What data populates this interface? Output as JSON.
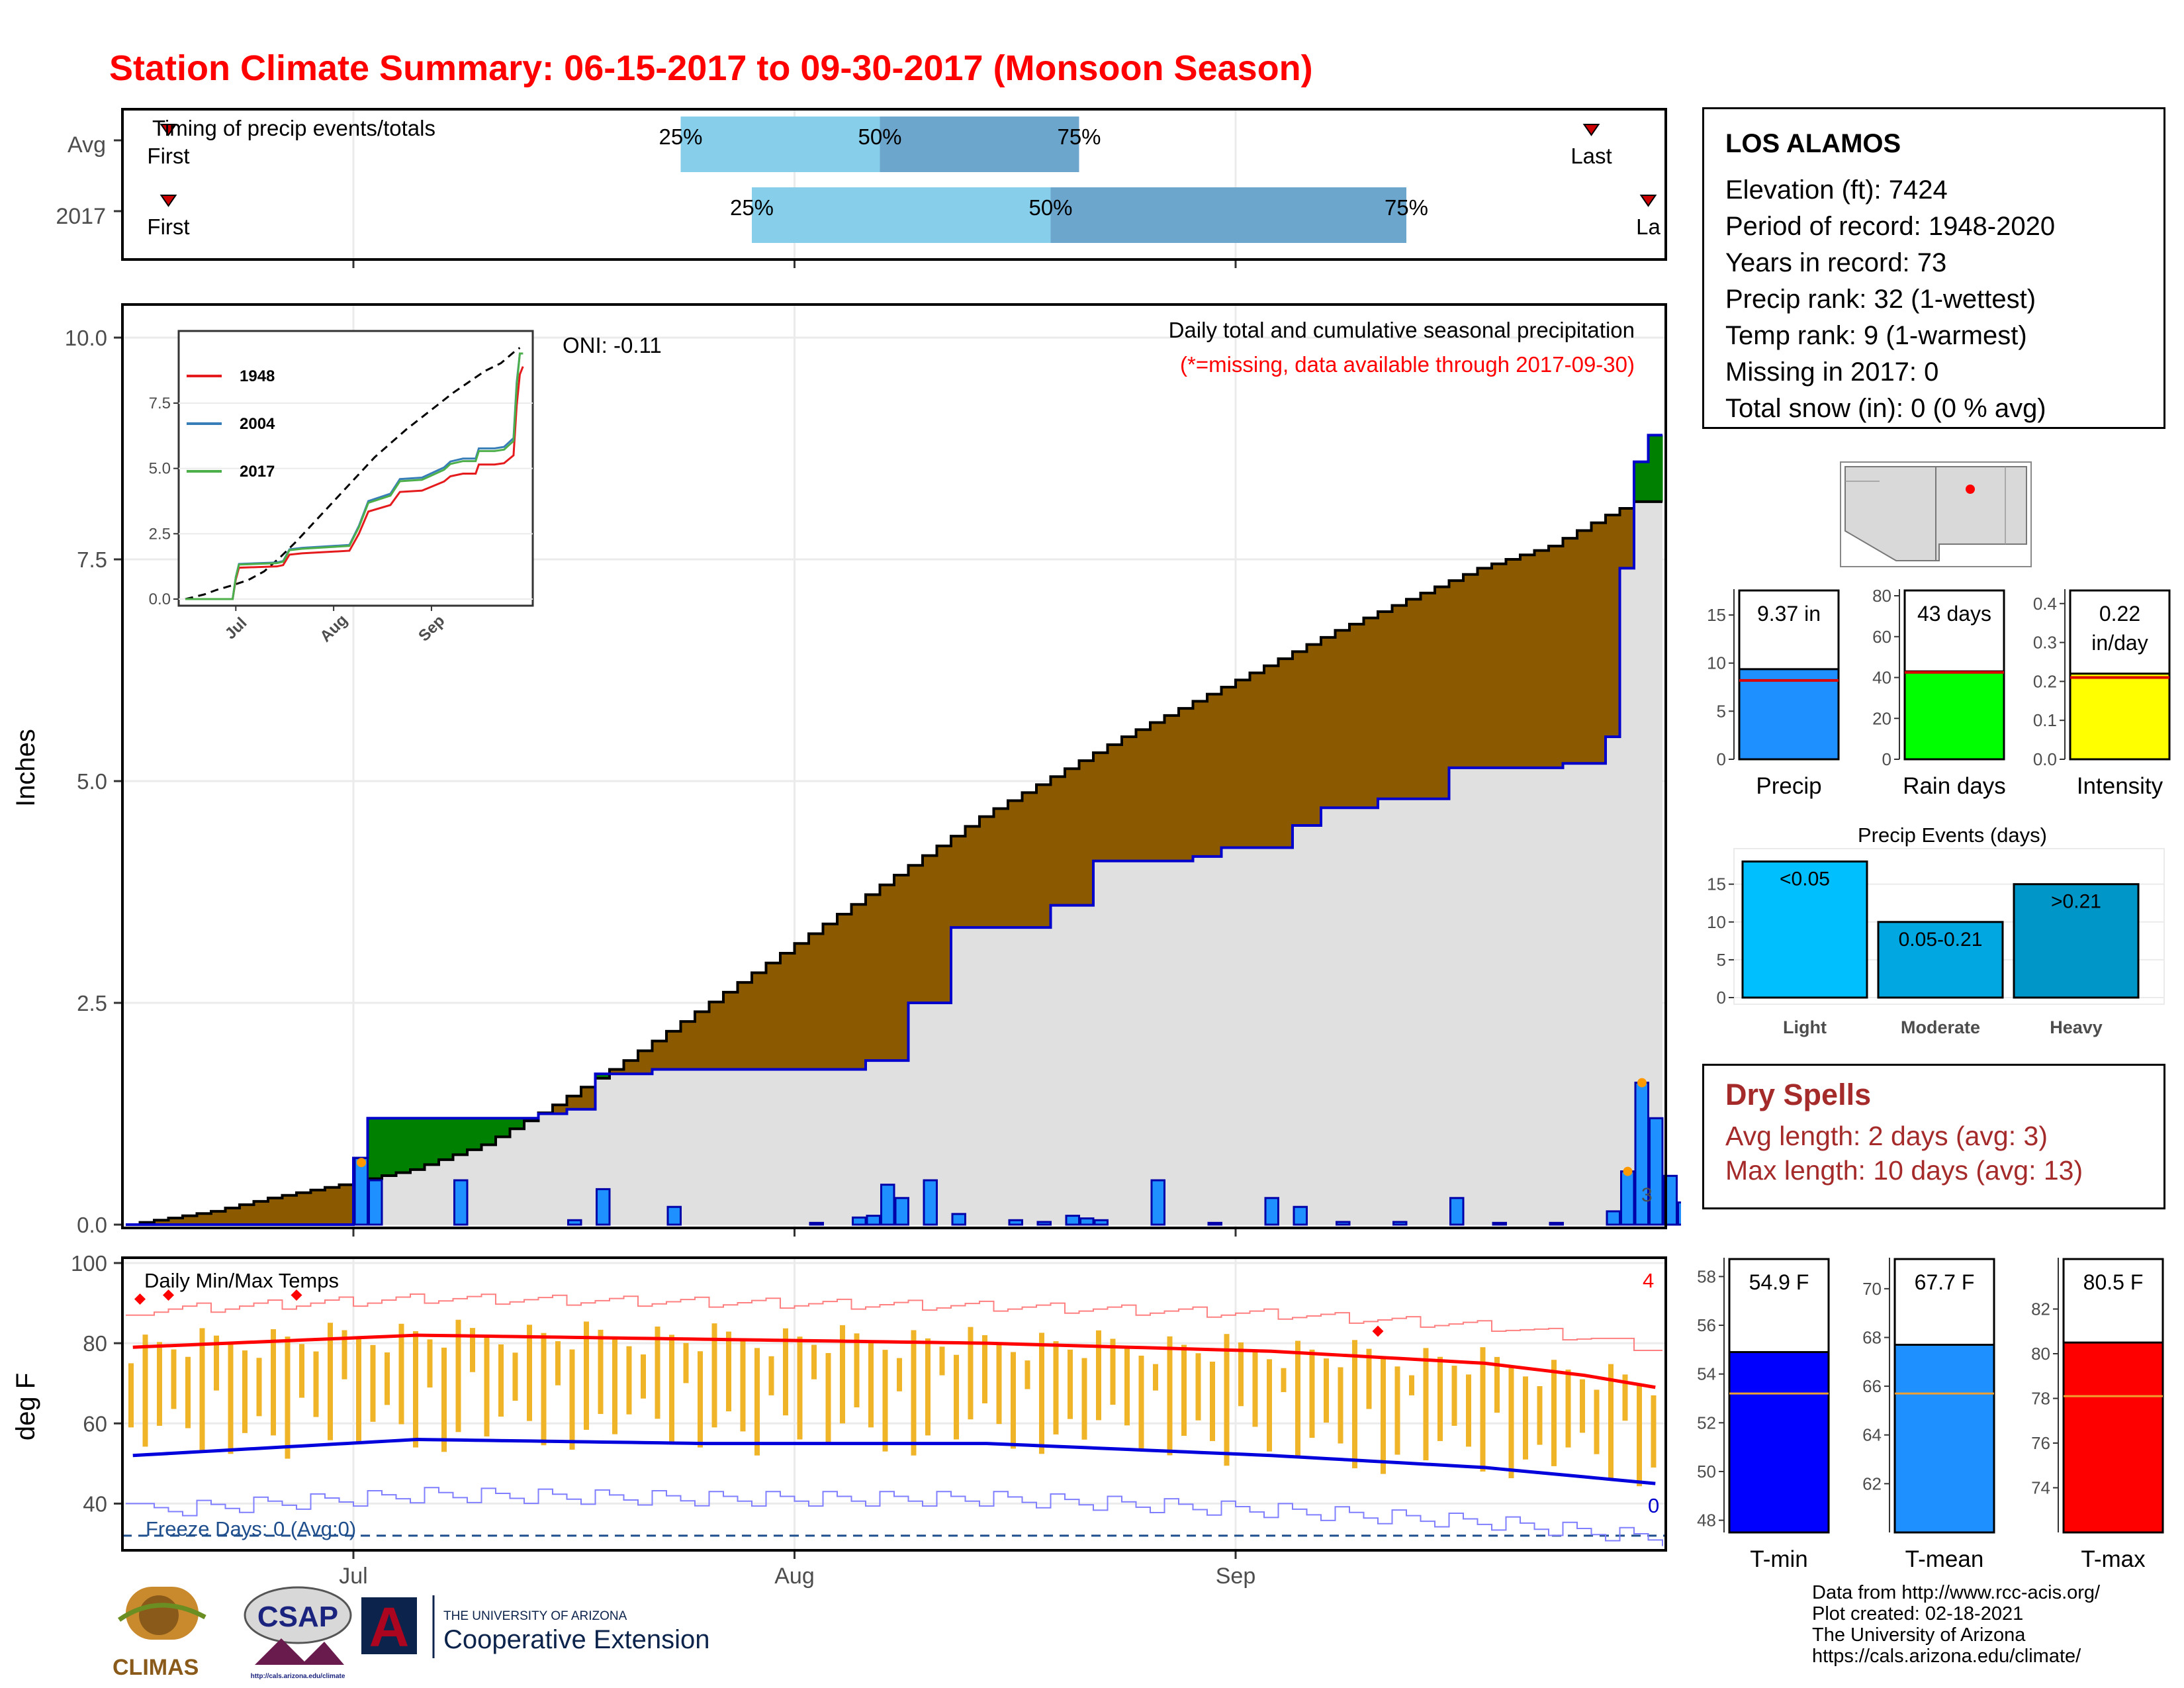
{
  "title": "Station Climate Summary: 06-15-2017 to 09-30-2017 (Monsoon Season)",
  "station": {
    "name": "LOS ALAMOS",
    "lines": [
      "Elevation (ft): 7424",
      "Period of record: 1948-2020",
      "Years in record: 73",
      "Precip rank: 32 (1-wettest)",
      "Temp rank: 9 (1-warmest)",
      "Missing in 2017: 0",
      "Total snow (in): 0 (0 % avg)"
    ]
  },
  "dry_spells": {
    "title": "Dry Spells",
    "avg_length": "Avg length: 2 days (avg: 3)",
    "max_length": "Max length: 10 days (avg: 13)"
  },
  "credits": [
    "Data from http://www.rcc-acis.org/",
    "Plot created: 02-18-2021",
    "The University of Arizona",
    "https://cals.arizona.edu/climate/"
  ],
  "logos": {
    "climas": "CLIMAS",
    "csap": "CSAP",
    "csap_url": "http://cals.arizona.edu/climate",
    "ua_line1": "THE UNIVERSITY OF ARIZONA",
    "ua_line2": "Cooperative Extension"
  },
  "colors": {
    "title": "#ff0000",
    "daily_bar": "#1e90ff",
    "deficit": "#8b5a00",
    "surplus": "#008000",
    "light": "#00bfff",
    "moderate": "#00a7e0",
    "heavy": "#0096c8",
    "tmin": "#0000ff",
    "tmean": "#1e90ff",
    "tmax": "#ff0000",
    "temp_bar": "#f0b429",
    "dry": "#a52a2a"
  },
  "chart_data": [
    {
      "type": "bar",
      "subtitle": "Timing of precip events/totals",
      "rows": [
        {
          "label": "Avg",
          "first": "First",
          "last": "Last",
          "q25": "25%",
          "q50": "50%",
          "q75": "75%",
          "q25_date": "2017-07-24",
          "q50_date": "2017-08-07",
          "q75_date": "2017-08-21",
          "first_date": "2017-06-18",
          "last_date": "2017-09-26"
        },
        {
          "label": "2017",
          "first": "First",
          "last": "La",
          "q25": "25%",
          "q50": "50%",
          "q75": "75%",
          "q25_date": "2017-07-29",
          "q50_date": "2017-08-19",
          "q75_date": "2017-09-13",
          "first_date": "2017-06-18",
          "last_date": "2017-09-30"
        }
      ],
      "x_ticks": [
        "Jul",
        "Aug",
        "Sep"
      ]
    },
    {
      "type": "area",
      "title": "Daily total and cumulative seasonal precipitation",
      "note": "(*=missing, data available through 2017-09-30)",
      "oni": "ONI: -0.11",
      "ylabel": "Inches",
      "ylim": [
        0,
        10.5
      ],
      "y_ticks": [
        "0.0",
        "2.5",
        "5.0",
        "7.5",
        "10.0"
      ],
      "x_ticks": [
        "Jul",
        "Aug",
        "Sep"
      ],
      "tail_label": "3",
      "avg_cumulative": [
        [
          0,
          0
        ],
        [
          6,
          0.15
        ],
        [
          10,
          0.3
        ],
        [
          15,
          0.45
        ],
        [
          20,
          0.62
        ],
        [
          25,
          0.9
        ],
        [
          30,
          1.35
        ],
        [
          35,
          1.85
        ],
        [
          40,
          2.4
        ],
        [
          45,
          2.95
        ],
        [
          50,
          3.5
        ],
        [
          55,
          4.05
        ],
        [
          60,
          4.6
        ],
        [
          65,
          5.05
        ],
        [
          70,
          5.5
        ],
        [
          75,
          5.9
        ],
        [
          80,
          6.3
        ],
        [
          85,
          6.7
        ],
        [
          90,
          7.05
        ],
        [
          95,
          7.4
        ],
        [
          100,
          7.65
        ],
        [
          104,
          8.0
        ],
        [
          106,
          8.15
        ]
      ],
      "obs_cumulative": [
        [
          0,
          0
        ],
        [
          15,
          0
        ],
        [
          16,
          0.75
        ],
        [
          17,
          1.2
        ],
        [
          29,
          1.25
        ],
        [
          31,
          1.3
        ],
        [
          33,
          1.7
        ],
        [
          37,
          1.75
        ],
        [
          52,
          1.85
        ],
        [
          55,
          2.5
        ],
        [
          58,
          3.35
        ],
        [
          65,
          3.6
        ],
        [
          68,
          4.1
        ],
        [
          75,
          4.15
        ],
        [
          77,
          4.25
        ],
        [
          82,
          4.5
        ],
        [
          84,
          4.7
        ],
        [
          88,
          4.8
        ],
        [
          92,
          4.8
        ],
        [
          93,
          5.15
        ],
        [
          98,
          5.15
        ],
        [
          101,
          5.2
        ],
        [
          104,
          5.5
        ],
        [
          104,
          5.5
        ],
        [
          105,
          7.4
        ],
        [
          106,
          8.6
        ],
        [
          107,
          8.9
        ]
      ],
      "daily": [
        [
          16,
          0.75
        ],
        [
          17,
          0.5
        ],
        [
          23,
          0.5
        ],
        [
          31,
          0.05
        ],
        [
          33,
          0.4
        ],
        [
          38,
          0.2
        ],
        [
          48,
          0.02
        ],
        [
          51,
          0.08
        ],
        [
          52,
          0.1
        ],
        [
          53,
          0.45
        ],
        [
          54,
          0.3
        ],
        [
          56,
          0.5
        ],
        [
          58,
          0.12
        ],
        [
          62,
          0.05
        ],
        [
          64,
          0.03
        ],
        [
          66,
          0.1
        ],
        [
          67,
          0.07
        ],
        [
          68,
          0.05
        ],
        [
          72,
          0.5
        ],
        [
          76,
          0.02
        ],
        [
          80,
          0.3
        ],
        [
          82,
          0.2
        ],
        [
          85,
          0.03
        ],
        [
          89,
          0.03
        ],
        [
          93,
          0.3
        ],
        [
          96,
          0.02
        ],
        [
          100,
          0.02
        ],
        [
          104,
          0.15
        ],
        [
          105,
          0.6
        ],
        [
          106,
          1.6
        ],
        [
          107,
          1.2
        ],
        [
          108,
          0.55
        ],
        [
          109,
          0.25
        ]
      ],
      "inset": {
        "y_ticks": [
          "0.0",
          "2.5",
          "5.0",
          "7.5"
        ],
        "x_ticks": [
          "Jul",
          "Aug",
          "Sep"
        ],
        "series": [
          {
            "name": "1948",
            "color": "#e41a1c"
          },
          {
            "name": "2004",
            "color": "#377eb8"
          },
          {
            "name": "2017",
            "color": "#4daf4a"
          }
        ]
      }
    },
    {
      "type": "bar",
      "labels": [
        "Precip",
        "Rain days",
        "Intensity"
      ],
      "values": [
        9.37,
        43,
        0.22
      ],
      "value_text": [
        "9.37 in",
        "43 days",
        "0.22 in/day"
      ],
      "avg_values": [
        8.2,
        42.5,
        0.21
      ],
      "y_ticks": [
        [
          "0",
          "5",
          "10",
          "15"
        ],
        [
          "0",
          "20",
          "40",
          "60",
          "80"
        ],
        [
          "0.0",
          "0.1",
          "0.2",
          "0.3",
          "0.4"
        ]
      ],
      "ylims": [
        [
          0,
          17
        ],
        [
          0,
          80
        ],
        [
          0,
          0.42
        ]
      ]
    },
    {
      "type": "bar",
      "title": "Precip Events (days)",
      "categories": [
        "Light",
        "Moderate",
        "Heavy"
      ],
      "values": [
        18,
        10,
        15
      ],
      "value_text": [
        "<0.05",
        "0.05-0.21",
        ">0.21"
      ],
      "y_ticks": [
        "0",
        "5",
        "10",
        "15"
      ],
      "ylim": [
        0,
        19
      ]
    },
    {
      "type": "line",
      "subtitle": "Daily Min/Max Temps",
      "ylabel": "deg F",
      "ylim": [
        30,
        100
      ],
      "y_ticks": [
        "40",
        "60",
        "80",
        "100"
      ],
      "x_ticks": [
        "Jul",
        "Aug",
        "Sep"
      ],
      "freeze": "Freeze Days: 0 (Avg:0)",
      "freeze_count": "0",
      "hot_count": "4",
      "avg_tmax": [
        [
          0,
          79
        ],
        [
          20,
          82
        ],
        [
          40,
          81
        ],
        [
          60,
          80
        ],
        [
          80,
          78
        ],
        [
          95,
          75
        ],
        [
          102,
          72
        ],
        [
          107,
          69
        ]
      ],
      "avg_tmin": [
        [
          0,
          52
        ],
        [
          20,
          56
        ],
        [
          40,
          55
        ],
        [
          60,
          55
        ],
        [
          80,
          52
        ],
        [
          95,
          49
        ],
        [
          107,
          45
        ]
      ]
    },
    {
      "type": "bar",
      "labels": [
        "T-min",
        "T-mean",
        "T-max"
      ],
      "values": [
        54.9,
        67.7,
        80.5
      ],
      "value_text": [
        "54.9 F",
        "67.7 F",
        "80.5 F"
      ],
      "avg_values": [
        53.2,
        65.7,
        78.1
      ],
      "y_ticks": [
        [
          "48",
          "50",
          "52",
          "54",
          "56",
          "58"
        ],
        [
          "62",
          "64",
          "66",
          "68",
          "70"
        ],
        [
          "74",
          "76",
          "78",
          "80",
          "82"
        ]
      ],
      "ylims": [
        [
          47.5,
          58.5
        ],
        [
          60,
          71
        ],
        [
          72,
          84
        ]
      ]
    }
  ]
}
